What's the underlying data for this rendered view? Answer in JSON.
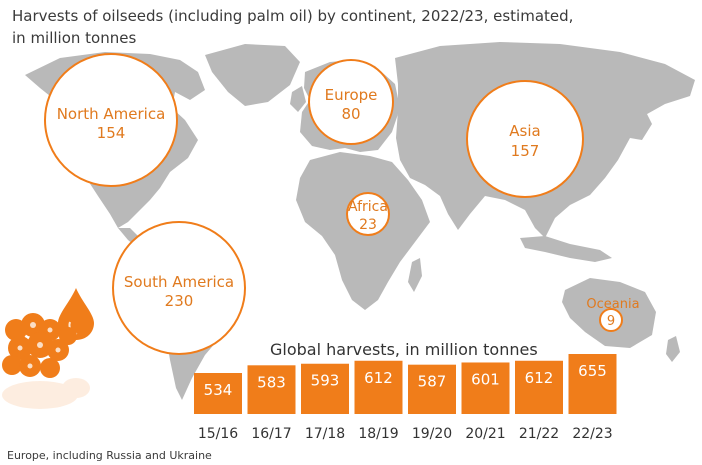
{
  "title_line1": "Harvests of oilseeds (including palm oil) by continent, 2022/23, estimated,",
  "title_line2": "in million tonnes",
  "footnote": "Europe, including Russia and Ukraine",
  "colors": {
    "accent": "#f07d1a",
    "bubble_text": "#e07a1f",
    "map": "#b9b9b9",
    "bar_text": "#ffffff"
  },
  "chart_data": [
    {
      "type": "bubble-map",
      "title": "Harvests of oilseeds (including palm oil) by continent, 2022/23, estimated, in million tonnes",
      "unit": "million tonnes",
      "regions": [
        {
          "name": "North America",
          "value": 154
        },
        {
          "name": "Europe",
          "value": 80
        },
        {
          "name": "Asia",
          "value": 157
        },
        {
          "name": "Africa",
          "value": 23
        },
        {
          "name": "South America",
          "value": 230
        },
        {
          "name": "Oceania",
          "value": 9
        }
      ]
    },
    {
      "type": "bar",
      "title": "Global harvests, in million tonnes",
      "categories": [
        "15/16",
        "16/17",
        "17/18",
        "18/19",
        "19/20",
        "20/21",
        "21/22",
        "22/23"
      ],
      "values": [
        534,
        583,
        593,
        612,
        587,
        601,
        612,
        655
      ],
      "xlabel": "",
      "ylabel": ""
    }
  ]
}
